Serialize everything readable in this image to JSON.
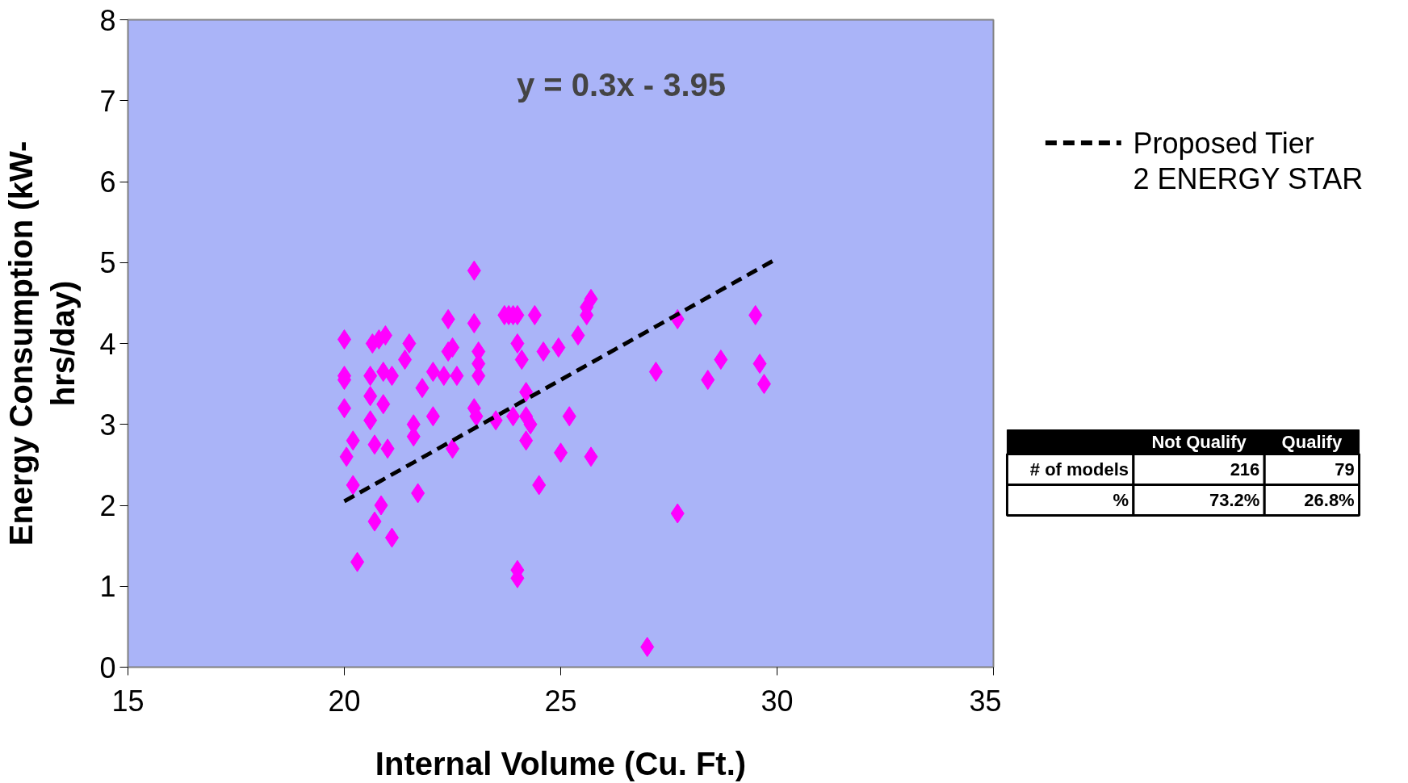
{
  "chart_data": [
    {
      "type": "scatter",
      "xlabel": "Internal Volume (Cu. Ft.)",
      "ylabel": "Energy Consumption (kW-hrs/day)",
      "xlim": [
        15,
        35
      ],
      "ylim": [
        0,
        8
      ],
      "xticks": [
        15,
        20,
        25,
        30,
        35
      ],
      "yticks": [
        0,
        1,
        2,
        3,
        4,
        5,
        6,
        7,
        8
      ],
      "grid": false,
      "legend": "right",
      "marker": "diamond",
      "annotations": [
        "y = 0.3x - 3.95"
      ],
      "series": [
        {
          "type": "scatter",
          "color": "#ff00ff",
          "x": [
            20.0,
            20.0,
            20.0,
            20.0,
            20.05,
            20.2,
            20.2,
            20.3,
            20.6,
            20.6,
            20.6,
            20.65,
            20.7,
            20.7,
            20.8,
            20.85,
            20.9,
            20.9,
            20.95,
            21.0,
            21.1,
            21.1,
            21.4,
            21.5,
            21.6,
            21.6,
            21.7,
            21.8,
            22.05,
            22.05,
            22.3,
            22.4,
            22.4,
            22.5,
            22.5,
            22.6,
            23.0,
            23.0,
            23.0,
            23.05,
            23.1,
            23.1,
            23.1,
            23.5,
            23.7,
            23.8,
            23.9,
            24.0,
            24.0,
            24.0,
            24.0,
            23.9,
            24.1,
            24.2,
            24.2,
            24.2,
            24.3,
            24.4,
            24.5,
            24.6,
            24.95,
            25.0,
            25.2,
            25.4,
            25.6,
            25.6,
            25.7,
            25.7,
            27.0,
            27.2,
            27.7,
            27.7,
            28.4,
            28.7,
            29.5,
            29.6,
            29.7
          ],
          "values": [
            4.05,
            3.6,
            3.55,
            3.2,
            2.6,
            2.8,
            2.25,
            1.3,
            3.35,
            3.6,
            3.05,
            4.0,
            2.75,
            1.8,
            4.05,
            2.0,
            3.65,
            3.25,
            4.1,
            2.7,
            3.6,
            1.6,
            3.8,
            4.0,
            3.0,
            2.85,
            2.15,
            3.45,
            3.1,
            3.65,
            3.6,
            4.3,
            3.9,
            3.95,
            2.7,
            3.6,
            4.9,
            4.25,
            3.2,
            3.1,
            3.9,
            3.75,
            3.6,
            3.05,
            4.35,
            4.35,
            4.35,
            4.35,
            4.0,
            1.2,
            1.1,
            3.1,
            3.8,
            3.4,
            3.1,
            2.8,
            3.0,
            4.35,
            2.25,
            3.9,
            3.95,
            2.65,
            3.1,
            4.1,
            4.35,
            4.45,
            4.55,
            2.6,
            0.25,
            3.65,
            4.3,
            1.9,
            3.55,
            3.8,
            4.35,
            3.75,
            3.5
          ]
        },
        {
          "type": "line",
          "name": "Proposed Tier 2 ENERGY STAR",
          "color": "#000000",
          "line_style": "dashed",
          "marker": "none",
          "x": [
            20,
            30
          ],
          "values": [
            2.05,
            5.05
          ]
        }
      ]
    },
    {
      "type": "other",
      "categories": [
        "Not Qualify",
        "Qualify"
      ],
      "series": [
        {
          "name": "# of models",
          "values": [
            216,
            79
          ],
          "value_labels": [
            "216",
            "79"
          ]
        },
        {
          "name": "%",
          "values": [
            73.2,
            26.8
          ],
          "value_labels": [
            "73.2%",
            "26.8%"
          ]
        }
      ]
    }
  ]
}
